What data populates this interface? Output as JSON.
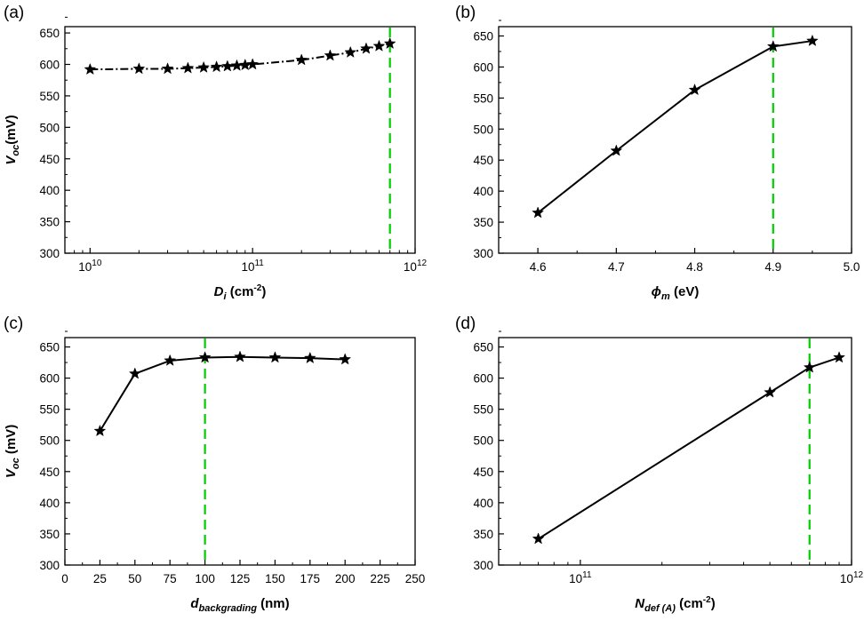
{
  "figure": {
    "panels": [
      "a",
      "b",
      "c",
      "d"
    ]
  },
  "chart_data": [
    {
      "id": "a",
      "type": "line",
      "panel_label": "(a)",
      "xscale": "log",
      "xlim": [
        7000000000.0,
        1000000000000.0
      ],
      "ylim": [
        300,
        660
      ],
      "xticks": [
        10000000000.0,
        100000000000.0,
        1000000000000.0
      ],
      "xtick_labels": [
        {
          "base": "10",
          "exp": "10"
        },
        {
          "base": "10",
          "exp": "11"
        },
        {
          "base": "10",
          "exp": "12"
        }
      ],
      "yticks": [
        300,
        350,
        400,
        450,
        500,
        550,
        600,
        650
      ],
      "ylabel": {
        "main": "V",
        "sub": "oc",
        "tail": "(mV)"
      },
      "xlabel": {
        "main": "D",
        "sub": "i",
        "tail": " (cm",
        "sup": "-2",
        "close": ")"
      },
      "line_style": "dashdot",
      "series": [
        {
          "name": "Voc",
          "x": [
            10000000000.0,
            20000000000.0,
            30000000000.0,
            40000000000.0,
            50000000000.0,
            60000000000.0,
            70000000000.0,
            80000000000.0,
            90000000000.0,
            100000000000.0,
            200000000000.0,
            300000000000.0,
            400000000000.0,
            500000000000.0,
            600000000000.0,
            700000000000.0
          ],
          "y": [
            592,
            593,
            593,
            594,
            595,
            596,
            597,
            598,
            599,
            600,
            607,
            614,
            619,
            625,
            629,
            633
          ]
        }
      ],
      "vline": {
        "x": 700000000000.0,
        "color": "#00cc00",
        "style": "dashed"
      }
    },
    {
      "id": "b",
      "type": "line",
      "panel_label": "(b)",
      "xscale": "linear",
      "xlim": [
        4.55,
        5.0
      ],
      "ylim": [
        300,
        665
      ],
      "xticks": [
        4.6,
        4.7,
        4.8,
        4.9,
        5.0
      ],
      "xtick_labels": [
        "4.6",
        "4.7",
        "4.8",
        "4.9",
        "5.0"
      ],
      "yticks": [
        300,
        350,
        400,
        450,
        500,
        550,
        600,
        650
      ],
      "xlabel": {
        "main": "ϕ",
        "sub": "m",
        "tail": " (eV)"
      },
      "line_style": "solid",
      "series": [
        {
          "name": "Voc",
          "x": [
            4.6,
            4.7,
            4.8,
            4.9,
            4.95
          ],
          "y": [
            365,
            465,
            563,
            633,
            642
          ]
        }
      ],
      "vline": {
        "x": 4.9,
        "color": "#00cc00",
        "style": "dashed"
      }
    },
    {
      "id": "c",
      "type": "line",
      "panel_label": "(c)",
      "xscale": "linear",
      "xlim": [
        0,
        250
      ],
      "ylim": [
        300,
        665
      ],
      "xticks": [
        0,
        25,
        50,
        75,
        100,
        125,
        150,
        175,
        200,
        225,
        250
      ],
      "xtick_labels": [
        "0",
        "25",
        "50",
        "75",
        "100",
        "125",
        "150",
        "175",
        "200",
        "225",
        "250"
      ],
      "yticks": [
        300,
        350,
        400,
        450,
        500,
        550,
        600,
        650
      ],
      "ylabel": {
        "main": "V",
        "sub": "oc",
        "tail": " (mV)"
      },
      "xlabel": {
        "main": "d",
        "sub": "backgrading",
        "tail": " (nm)"
      },
      "line_style": "solid",
      "series": [
        {
          "name": "Voc",
          "x": [
            25,
            50,
            75,
            100,
            125,
            150,
            175,
            200
          ],
          "y": [
            515,
            607,
            628,
            633,
            634,
            633,
            632,
            630
          ]
        }
      ],
      "vline": {
        "x": 100,
        "color": "#00cc00",
        "style": "dashed"
      }
    },
    {
      "id": "d",
      "type": "line",
      "panel_label": "(d)",
      "xscale": "log",
      "xlim": [
        50000000000.0,
        1000000000000.0
      ],
      "ylim": [
        300,
        665
      ],
      "xticks": [
        100000000000.0,
        1000000000000.0
      ],
      "xtick_labels": [
        {
          "base": "10",
          "exp": "11"
        },
        {
          "base": "10",
          "exp": "12"
        }
      ],
      "yticks": [
        300,
        350,
        400,
        450,
        500,
        550,
        600,
        650
      ],
      "xlabel": {
        "main": "N",
        "sub": "def (A)",
        "tail": " (cm",
        "sup": "-2",
        "close": ")"
      },
      "line_style": "solid",
      "series": [
        {
          "name": "Voc",
          "x": [
            70000000000.0,
            500000000000.0,
            700000000000.0,
            900000000000.0
          ],
          "y": [
            342,
            577,
            617,
            633
          ]
        }
      ],
      "vline": {
        "x": 700000000000.0,
        "color": "#00cc00",
        "style": "dashed"
      }
    }
  ]
}
